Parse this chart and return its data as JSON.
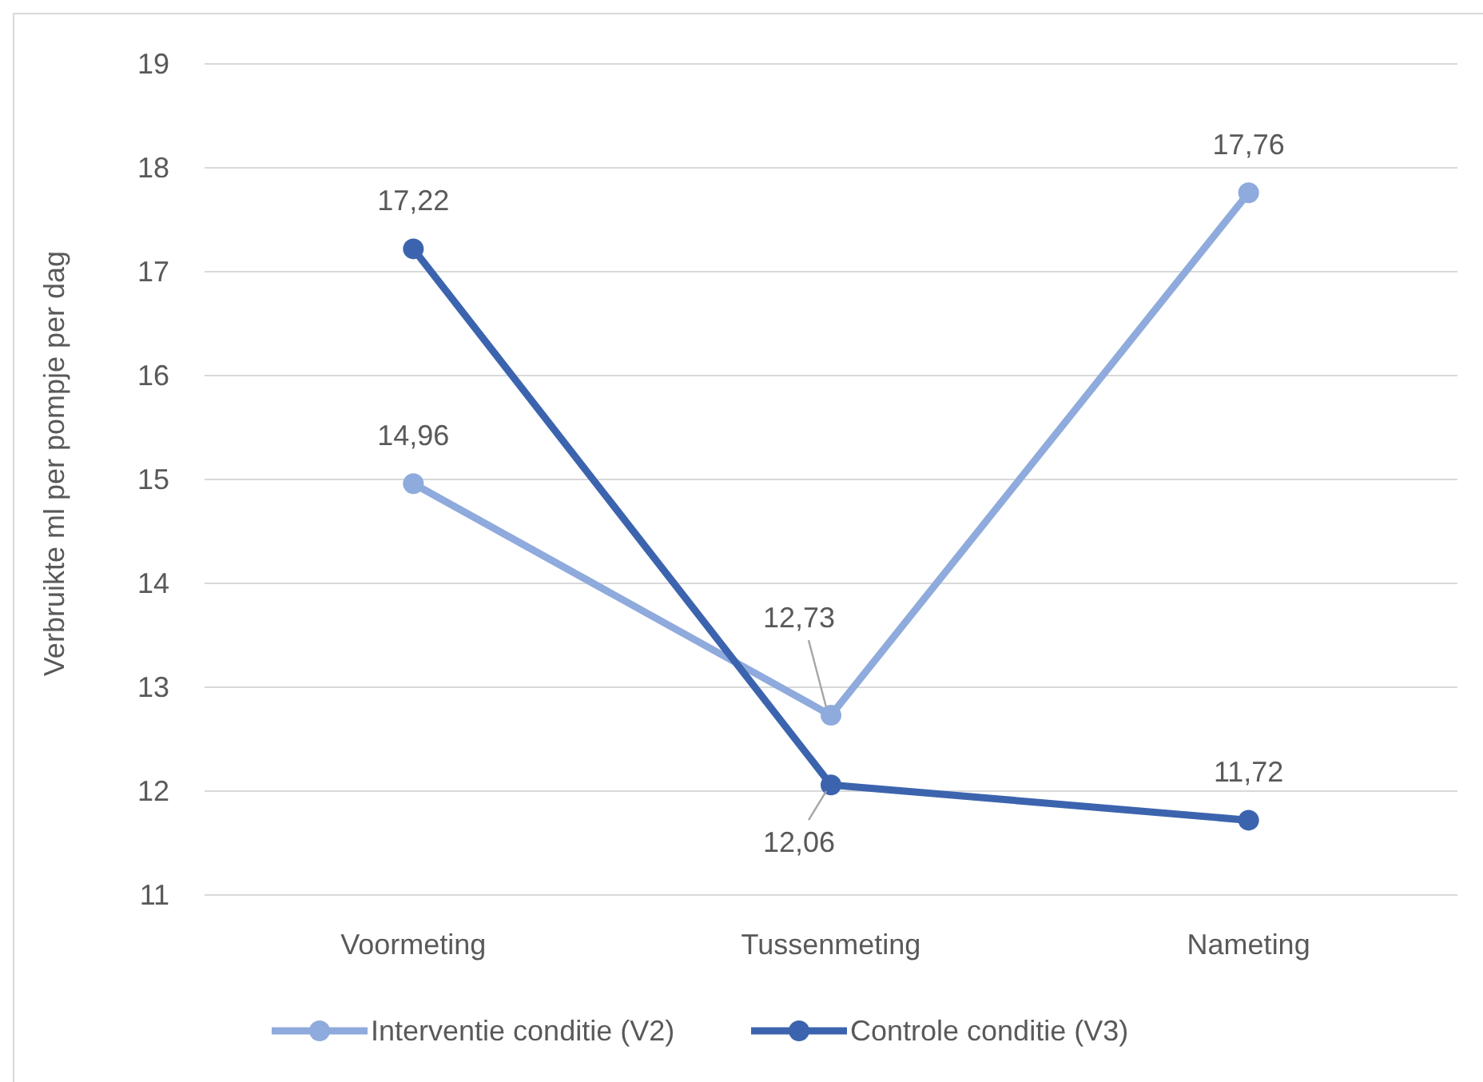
{
  "chart_data": {
    "type": "line",
    "ylabel": "Verbruikte ml per pompje per dag",
    "categories": [
      "Voormeting",
      "Tussenmeting",
      "Nameting"
    ],
    "ylim": [
      11,
      19
    ],
    "yticks": [
      11,
      12,
      13,
      14,
      15,
      16,
      17,
      18,
      19
    ],
    "grid": "y",
    "legend": "bottom",
    "marker": "circle",
    "line_style": "solid",
    "series": [
      {
        "name": "Interventie conditie (V2)",
        "color": "#8faadc",
        "values": [
          14.96,
          12.73,
          17.76
        ],
        "value_labels": [
          "14,96",
          "12,73",
          "17,76"
        ]
      },
      {
        "name": "Controle conditie (V3)",
        "color": "#3c64ae",
        "values": [
          17.22,
          12.06,
          11.72
        ],
        "value_labels": [
          "17,22",
          "12,06",
          "11,72"
        ]
      }
    ]
  }
}
